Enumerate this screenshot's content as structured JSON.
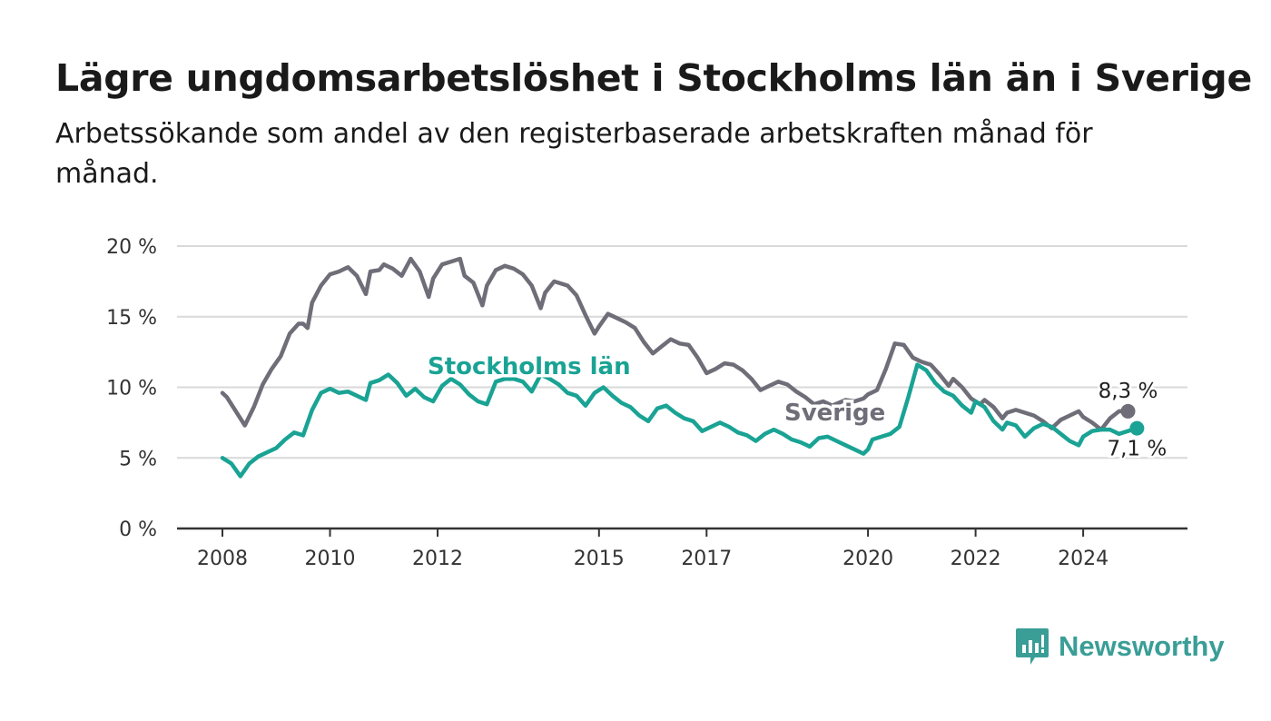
{
  "title": "Lägre ungdomsarbetslöshet i Stockholms län än i Sverige",
  "subtitle": "Arbetssökande som andel av den registerbaserade arbetskraften månad för månad.",
  "brand": {
    "name": "Newsworthy",
    "color": "#3a9e97",
    "icon": "newsworthy-logo-icon"
  },
  "chart_data": {
    "type": "line",
    "ylim": [
      0,
      20
    ],
    "yticks": [
      0,
      5,
      10,
      15,
      20
    ],
    "ytick_labels": [
      "0 %",
      "5 %",
      "10 %",
      "15 %",
      "20 %"
    ],
    "xlim": [
      "2008-01",
      "2025-06"
    ],
    "xticks": [
      "2008-01",
      "2010-01",
      "2012-01",
      "2015-01",
      "2017-01",
      "2020-01",
      "2022-01",
      "2024-01"
    ],
    "xtick_labels": [
      "2008",
      "2010",
      "2012",
      "2015",
      "2017",
      "2020",
      "2022",
      "2024"
    ],
    "grid": true,
    "legend": "none",
    "series": [
      {
        "name": "Sverige",
        "color": "#6f6e78",
        "end_label": "8,3 %",
        "points": [
          [
            "2008-01",
            9.6
          ],
          [
            "2008-02",
            9.3
          ],
          [
            "2008-04",
            8.3
          ],
          [
            "2008-06",
            7.3
          ],
          [
            "2008-08",
            8.6
          ],
          [
            "2008-10",
            10.2
          ],
          [
            "2008-12",
            11.3
          ],
          [
            "2009-02",
            12.2
          ],
          [
            "2009-04",
            13.8
          ],
          [
            "2009-06",
            14.5
          ],
          [
            "2009-07",
            14.5
          ],
          [
            "2009-08",
            14.2
          ],
          [
            "2009-09",
            16.0
          ],
          [
            "2009-11",
            17.2
          ],
          [
            "2010-01",
            18.0
          ],
          [
            "2010-03",
            18.2
          ],
          [
            "2010-05",
            18.5
          ],
          [
            "2010-07",
            17.9
          ],
          [
            "2010-09",
            16.6
          ],
          [
            "2010-10",
            18.2
          ],
          [
            "2010-12",
            18.3
          ],
          [
            "2011-01",
            18.7
          ],
          [
            "2011-03",
            18.4
          ],
          [
            "2011-05",
            17.9
          ],
          [
            "2011-07",
            19.1
          ],
          [
            "2011-09",
            18.2
          ],
          [
            "2011-11",
            16.4
          ],
          [
            "2011-12",
            17.7
          ],
          [
            "2012-02",
            18.7
          ],
          [
            "2012-04",
            18.9
          ],
          [
            "2012-06",
            19.1
          ],
          [
            "2012-07",
            17.9
          ],
          [
            "2012-09",
            17.4
          ],
          [
            "2012-11",
            15.8
          ],
          [
            "2012-12",
            17.2
          ],
          [
            "2013-02",
            18.3
          ],
          [
            "2013-04",
            18.6
          ],
          [
            "2013-06",
            18.4
          ],
          [
            "2013-08",
            18.0
          ],
          [
            "2013-10",
            17.2
          ],
          [
            "2013-12",
            15.6
          ],
          [
            "2014-01",
            16.7
          ],
          [
            "2014-03",
            17.5
          ],
          [
            "2014-06",
            17.2
          ],
          [
            "2014-08",
            16.5
          ],
          [
            "2014-10",
            15.1
          ],
          [
            "2014-12",
            13.8
          ],
          [
            "2015-01",
            14.3
          ],
          [
            "2015-03",
            15.2
          ],
          [
            "2015-05",
            14.9
          ],
          [
            "2015-07",
            14.6
          ],
          [
            "2015-09",
            14.2
          ],
          [
            "2015-11",
            13.2
          ],
          [
            "2016-01",
            12.4
          ],
          [
            "2016-03",
            12.9
          ],
          [
            "2016-05",
            13.4
          ],
          [
            "2016-07",
            13.1
          ],
          [
            "2016-09",
            13.0
          ],
          [
            "2016-11",
            12.1
          ],
          [
            "2017-01",
            11.0
          ],
          [
            "2017-03",
            11.3
          ],
          [
            "2017-05",
            11.7
          ],
          [
            "2017-07",
            11.6
          ],
          [
            "2017-09",
            11.2
          ],
          [
            "2017-11",
            10.6
          ],
          [
            "2018-01",
            9.8
          ],
          [
            "2018-03",
            10.1
          ],
          [
            "2018-05",
            10.4
          ],
          [
            "2018-07",
            10.2
          ],
          [
            "2018-09",
            9.7
          ],
          [
            "2018-11",
            9.3
          ],
          [
            "2019-01",
            8.8
          ],
          [
            "2019-03",
            9.0
          ],
          [
            "2019-05",
            8.7
          ],
          [
            "2019-08",
            9.1
          ],
          [
            "2019-10",
            9.0
          ],
          [
            "2019-12",
            9.2
          ],
          [
            "2020-01",
            9.5
          ],
          [
            "2020-03",
            9.8
          ],
          [
            "2020-05",
            11.3
          ],
          [
            "2020-07",
            13.1
          ],
          [
            "2020-09",
            13.0
          ],
          [
            "2020-11",
            12.1
          ],
          [
            "2021-01",
            11.8
          ],
          [
            "2021-03",
            11.6
          ],
          [
            "2021-05",
            10.9
          ],
          [
            "2021-07",
            10.1
          ],
          [
            "2021-08",
            10.6
          ],
          [
            "2021-10",
            10.0
          ],
          [
            "2021-12",
            9.2
          ],
          [
            "2022-02",
            8.8
          ],
          [
            "2022-03",
            9.1
          ],
          [
            "2022-05",
            8.6
          ],
          [
            "2022-07",
            7.8
          ],
          [
            "2022-08",
            8.2
          ],
          [
            "2022-10",
            8.4
          ],
          [
            "2022-12",
            8.2
          ],
          [
            "2023-02",
            8.0
          ],
          [
            "2023-04",
            7.6
          ],
          [
            "2023-06",
            7.1
          ],
          [
            "2023-08",
            7.7
          ],
          [
            "2023-10",
            8.0
          ],
          [
            "2023-12",
            8.3
          ],
          [
            "2024-01",
            7.9
          ],
          [
            "2024-03",
            7.5
          ],
          [
            "2024-05",
            7.0
          ],
          [
            "2024-07",
            7.8
          ],
          [
            "2024-09",
            8.3
          ],
          [
            "2024-11",
            8.3
          ]
        ]
      },
      {
        "name": "Stockholms län",
        "color": "#1aa394",
        "end_label": "7,1 %",
        "points": [
          [
            "2008-01",
            5.0
          ],
          [
            "2008-03",
            4.6
          ],
          [
            "2008-05",
            3.7
          ],
          [
            "2008-07",
            4.6
          ],
          [
            "2008-09",
            5.1
          ],
          [
            "2008-11",
            5.4
          ],
          [
            "2009-01",
            5.7
          ],
          [
            "2009-03",
            6.3
          ],
          [
            "2009-05",
            6.8
          ],
          [
            "2009-07",
            6.6
          ],
          [
            "2009-09",
            8.4
          ],
          [
            "2009-11",
            9.6
          ],
          [
            "2010-01",
            9.9
          ],
          [
            "2010-03",
            9.6
          ],
          [
            "2010-05",
            9.7
          ],
          [
            "2010-07",
            9.4
          ],
          [
            "2010-09",
            9.1
          ],
          [
            "2010-10",
            10.3
          ],
          [
            "2010-12",
            10.5
          ],
          [
            "2011-02",
            10.9
          ],
          [
            "2011-04",
            10.3
          ],
          [
            "2011-06",
            9.4
          ],
          [
            "2011-08",
            9.9
          ],
          [
            "2011-10",
            9.3
          ],
          [
            "2011-12",
            9.0
          ],
          [
            "2012-02",
            10.1
          ],
          [
            "2012-04",
            10.6
          ],
          [
            "2012-06",
            10.2
          ],
          [
            "2012-08",
            9.5
          ],
          [
            "2012-10",
            9.0
          ],
          [
            "2012-12",
            8.8
          ],
          [
            "2013-02",
            10.4
          ],
          [
            "2013-04",
            10.6
          ],
          [
            "2013-06",
            10.6
          ],
          [
            "2013-08",
            10.4
          ],
          [
            "2013-10",
            9.7
          ],
          [
            "2013-12",
            10.9
          ],
          [
            "2014-02",
            10.6
          ],
          [
            "2014-04",
            10.2
          ],
          [
            "2014-06",
            9.6
          ],
          [
            "2014-08",
            9.4
          ],
          [
            "2014-10",
            8.7
          ],
          [
            "2014-12",
            9.6
          ],
          [
            "2015-02",
            10.0
          ],
          [
            "2015-04",
            9.4
          ],
          [
            "2015-06",
            8.9
          ],
          [
            "2015-08",
            8.6
          ],
          [
            "2015-10",
            8.0
          ],
          [
            "2015-12",
            7.6
          ],
          [
            "2016-02",
            8.5
          ],
          [
            "2016-04",
            8.7
          ],
          [
            "2016-06",
            8.2
          ],
          [
            "2016-08",
            7.8
          ],
          [
            "2016-10",
            7.6
          ],
          [
            "2016-12",
            6.9
          ],
          [
            "2017-02",
            7.2
          ],
          [
            "2017-04",
            7.5
          ],
          [
            "2017-06",
            7.2
          ],
          [
            "2017-08",
            6.8
          ],
          [
            "2017-10",
            6.6
          ],
          [
            "2017-12",
            6.2
          ],
          [
            "2018-02",
            6.7
          ],
          [
            "2018-04",
            7.0
          ],
          [
            "2018-06",
            6.7
          ],
          [
            "2018-08",
            6.3
          ],
          [
            "2018-10",
            6.1
          ],
          [
            "2018-12",
            5.8
          ],
          [
            "2019-02",
            6.4
          ],
          [
            "2019-04",
            6.5
          ],
          [
            "2019-06",
            6.2
          ],
          [
            "2019-08",
            5.9
          ],
          [
            "2019-10",
            5.6
          ],
          [
            "2019-12",
            5.3
          ],
          [
            "2020-01",
            5.6
          ],
          [
            "2020-02",
            6.3
          ],
          [
            "2020-04",
            6.5
          ],
          [
            "2020-06",
            6.7
          ],
          [
            "2020-08",
            7.2
          ],
          [
            "2020-10",
            9.3
          ],
          [
            "2020-12",
            11.6
          ],
          [
            "2021-02",
            11.2
          ],
          [
            "2021-04",
            10.3
          ],
          [
            "2021-06",
            9.7
          ],
          [
            "2021-08",
            9.4
          ],
          [
            "2021-10",
            8.7
          ],
          [
            "2021-12",
            8.2
          ],
          [
            "2022-01",
            9.0
          ],
          [
            "2022-03",
            8.6
          ],
          [
            "2022-05",
            7.6
          ],
          [
            "2022-07",
            7.0
          ],
          [
            "2022-08",
            7.5
          ],
          [
            "2022-10",
            7.3
          ],
          [
            "2022-12",
            6.5
          ],
          [
            "2023-02",
            7.1
          ],
          [
            "2023-04",
            7.4
          ],
          [
            "2023-06",
            7.2
          ],
          [
            "2023-08",
            6.7
          ],
          [
            "2023-10",
            6.2
          ],
          [
            "2023-12",
            5.9
          ],
          [
            "2024-01",
            6.5
          ],
          [
            "2024-03",
            6.9
          ],
          [
            "2024-05",
            7.0
          ],
          [
            "2024-07",
            7.0
          ],
          [
            "2024-09",
            6.7
          ],
          [
            "2024-11",
            6.9
          ],
          [
            "2025-01",
            7.1
          ]
        ]
      }
    ]
  }
}
